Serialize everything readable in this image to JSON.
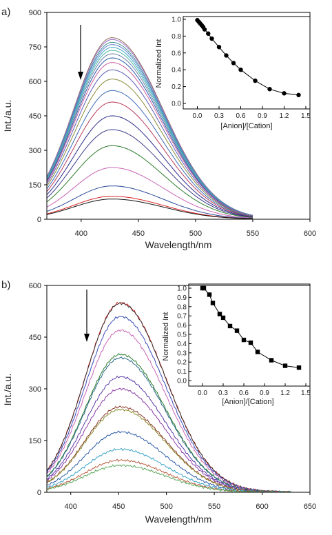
{
  "chart_data": [
    {
      "panel": "a)",
      "type": "line",
      "xlabel": "Wavelength/nm",
      "ylabel": "Int./a.u.",
      "xlim": [
        370,
        600
      ],
      "ylim": [
        0,
        900
      ],
      "xticks": [
        400,
        450,
        500,
        550,
        600
      ],
      "yticks": [
        0,
        150,
        300,
        450,
        600,
        750,
        900
      ],
      "arrow": "downward, near 400 nm",
      "x_range_of_spectra": [
        370,
        550
      ],
      "peak_wavelength": 427,
      "peak_intensities": [
        790,
        782,
        770,
        760,
        748,
        735,
        720,
        702,
        682,
        650,
        610,
        560,
        510,
        450,
        390,
        320,
        225,
        145,
        100,
        88
      ],
      "series_colors": [
        "#8c6a5a",
        "#9a6cc8",
        "#3f8f8f",
        "#5b7fd0",
        "#3aa3c8",
        "#4ab3a0",
        "#6a7fb0",
        "#2a5aa8",
        "#c85a9a",
        "#5a5ab8",
        "#8a8a3a",
        "#3a6ab8",
        "#b83a5a",
        "#2a2a8a",
        "#3a3a8a",
        "#2a7a2a",
        "#c864b4",
        "#2a4a9a",
        "#d82020",
        "#111111"
      ],
      "inset": {
        "type": "scatter",
        "xlabel": "[Anion]/[Cation]",
        "ylabel": "Normalized Int",
        "xlim": [
          -0.1,
          1.5
        ],
        "ylim": [
          0.0,
          1.0
        ],
        "xticks": [
          0.0,
          0.3,
          0.6,
          0.9,
          1.2,
          1.5
        ],
        "yticks": [
          0.0,
          0.2,
          0.4,
          0.6,
          0.8,
          1.0
        ],
        "marker": "circle",
        "x": [
          0.0,
          0.02,
          0.04,
          0.06,
          0.08,
          0.1,
          0.15,
          0.2,
          0.3,
          0.4,
          0.5,
          0.6,
          0.8,
          1.0,
          1.2,
          1.4
        ],
        "y": [
          0.99,
          0.97,
          0.95,
          0.93,
          0.91,
          0.88,
          0.83,
          0.77,
          0.67,
          0.57,
          0.48,
          0.4,
          0.27,
          0.17,
          0.12,
          0.1
        ]
      }
    },
    {
      "panel": "b)",
      "type": "line",
      "xlabel": "Wavelength/nm",
      "ylabel": "Int./a.u.",
      "xlim": [
        375,
        650
      ],
      "ylim": [
        0,
        600
      ],
      "xticks": [
        400,
        450,
        500,
        550,
        600,
        650
      ],
      "yticks": [
        0,
        150,
        300,
        450,
        600
      ],
      "arrow": "downward, near 415 nm",
      "x_range_of_spectra": [
        375,
        630
      ],
      "peak_wavelength": 452,
      "peak_intensities": [
        550,
        548,
        510,
        470,
        400,
        390,
        335,
        300,
        248,
        240,
        175,
        125,
        93,
        78
      ],
      "series_colors": [
        "#d82020",
        "#333333",
        "#3a4ab8",
        "#c864b4",
        "#2a7a2a",
        "#2a6a8a",
        "#5a3aa8",
        "#8a3aa8",
        "#8a3a2a",
        "#8a8a2a",
        "#2a5aa8",
        "#3aa3c8",
        "#b85a3a",
        "#5aa85a"
      ],
      "inset": {
        "type": "scatter",
        "xlabel": "[Anion]/[Cation]",
        "ylabel": "Normalized Int",
        "xlim": [
          -0.1,
          1.5
        ],
        "ylim": [
          0.0,
          1.0
        ],
        "xticks": [
          0.0,
          0.3,
          0.6,
          0.9,
          1.2,
          1.5
        ],
        "yticks": [
          0.0,
          0.1,
          0.2,
          0.3,
          0.4,
          0.5,
          0.6,
          0.7,
          0.8,
          0.9,
          1.0
        ],
        "marker": "square",
        "x": [
          0.0,
          0.02,
          0.1,
          0.15,
          0.25,
          0.3,
          0.4,
          0.5,
          0.6,
          0.7,
          0.8,
          1.0,
          1.2,
          1.4
        ],
        "y": [
          1.0,
          1.0,
          0.93,
          0.84,
          0.72,
          0.68,
          0.59,
          0.54,
          0.44,
          0.41,
          0.31,
          0.22,
          0.16,
          0.14
        ]
      }
    }
  ]
}
